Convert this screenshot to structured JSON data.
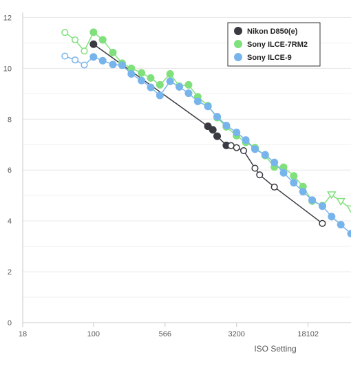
{
  "chart_data": {
    "type": "line",
    "title": "",
    "xlabel": "ISO Setting",
    "ylabel": "",
    "x_scale": "log2",
    "xlim": [
      18,
      51200
    ],
    "ylim": [
      0,
      12.2
    ],
    "x_ticks": [
      18,
      100,
      566,
      3200,
      18102
    ],
    "x_tick_labels": [
      "18",
      "100",
      "566",
      "3200",
      "18102"
    ],
    "y_ticks": [
      0,
      2,
      4,
      6,
      8,
      10,
      12
    ],
    "y_tick_labels": [
      "0",
      "2",
      "4",
      "6",
      "8",
      "10",
      "12"
    ],
    "grid": true,
    "legend_position": "top-right",
    "series": [
      {
        "name": "Nikon D850(e)",
        "color": "#3a3a42",
        "marker": "circle",
        "points": [
          {
            "x": 100,
            "y": 10.95,
            "filled": true
          },
          {
            "x": 1600,
            "y": 7.72,
            "filled": true
          },
          {
            "x": 1800,
            "y": 7.58,
            "filled": true
          },
          {
            "x": 2000,
            "y": 7.33,
            "filled": true
          },
          {
            "x": 2500,
            "y": 6.97,
            "filled": true
          },
          {
            "x": 2800,
            "y": 6.96,
            "filled": false
          },
          {
            "x": 3200,
            "y": 6.88,
            "filled": false
          },
          {
            "x": 3800,
            "y": 6.76,
            "filled": false
          },
          {
            "x": 5000,
            "y": 6.07,
            "filled": false
          },
          {
            "x": 5600,
            "y": 5.81,
            "filled": false
          },
          {
            "x": 8000,
            "y": 5.33,
            "filled": false
          },
          {
            "x": 25600,
            "y": 3.9,
            "filled": false
          }
        ]
      },
      {
        "name": "Sony ILCE-7RM2",
        "color": "#80e07c",
        "marker": "circle",
        "points": [
          {
            "x": 50,
            "y": 11.41,
            "filled": false
          },
          {
            "x": 64,
            "y": 11.12,
            "filled": false
          },
          {
            "x": 80,
            "y": 10.68,
            "filled": false
          },
          {
            "x": 100,
            "y": 11.42,
            "filled": true
          },
          {
            "x": 125,
            "y": 11.12,
            "filled": true
          },
          {
            "x": 160,
            "y": 10.62,
            "filled": true
          },
          {
            "x": 200,
            "y": 10.2,
            "filled": true
          },
          {
            "x": 250,
            "y": 10.0,
            "filled": true
          },
          {
            "x": 320,
            "y": 9.82,
            "filled": true
          },
          {
            "x": 400,
            "y": 9.62,
            "filled": true
          },
          {
            "x": 500,
            "y": 9.35,
            "filled": true
          },
          {
            "x": 640,
            "y": 9.78,
            "filled": true
          },
          {
            "x": 800,
            "y": 9.3,
            "filled": true
          },
          {
            "x": 1000,
            "y": 9.35,
            "filled": true
          },
          {
            "x": 1250,
            "y": 8.88,
            "filled": true
          },
          {
            "x": 1600,
            "y": 8.53,
            "filled": true
          },
          {
            "x": 2000,
            "y": 8.06,
            "filled": true
          },
          {
            "x": 2500,
            "y": 7.7,
            "filled": true
          },
          {
            "x": 3200,
            "y": 7.35,
            "filled": true
          },
          {
            "x": 4000,
            "y": 7.09,
            "filled": true
          },
          {
            "x": 5000,
            "y": 6.88,
            "filled": true
          },
          {
            "x": 6400,
            "y": 6.57,
            "filled": true
          },
          {
            "x": 8000,
            "y": 6.12,
            "filled": true
          },
          {
            "x": 10000,
            "y": 6.11,
            "filled": true
          },
          {
            "x": 12800,
            "y": 5.77,
            "filled": true
          },
          {
            "x": 16000,
            "y": 5.35,
            "filled": true
          },
          {
            "x": 20000,
            "y": 4.78,
            "filled": true
          },
          {
            "x": 25600,
            "y": 4.6,
            "filled": true
          },
          {
            "x": 32000,
            "y": 5.03,
            "filled": false,
            "marker": "triangle-down"
          },
          {
            "x": 40000,
            "y": 4.77,
            "filled": false,
            "marker": "triangle-down"
          },
          {
            "x": 51200,
            "y": 4.48,
            "filled": false,
            "marker": "triangle-down"
          }
        ]
      },
      {
        "name": "Sony ILCE-9",
        "color": "#78b4ec",
        "marker": "circle",
        "points": [
          {
            "x": 50,
            "y": 10.48,
            "filled": false
          },
          {
            "x": 64,
            "y": 10.33,
            "filled": false
          },
          {
            "x": 80,
            "y": 10.13,
            "filled": false
          },
          {
            "x": 100,
            "y": 10.45,
            "filled": true
          },
          {
            "x": 125,
            "y": 10.3,
            "filled": true
          },
          {
            "x": 160,
            "y": 10.15,
            "filled": true
          },
          {
            "x": 200,
            "y": 10.12,
            "filled": true
          },
          {
            "x": 250,
            "y": 9.78,
            "filled": true
          },
          {
            "x": 320,
            "y": 9.52,
            "filled": true
          },
          {
            "x": 400,
            "y": 9.25,
            "filled": true
          },
          {
            "x": 500,
            "y": 8.93,
            "filled": true
          },
          {
            "x": 640,
            "y": 9.49,
            "filled": true
          },
          {
            "x": 800,
            "y": 9.27,
            "filled": true
          },
          {
            "x": 1000,
            "y": 9.02,
            "filled": true
          },
          {
            "x": 1250,
            "y": 8.7,
            "filled": true
          },
          {
            "x": 1600,
            "y": 8.5,
            "filled": true
          },
          {
            "x": 2000,
            "y": 8.1,
            "filled": true
          },
          {
            "x": 2500,
            "y": 7.75,
            "filled": true
          },
          {
            "x": 3200,
            "y": 7.48,
            "filled": true
          },
          {
            "x": 4000,
            "y": 7.18,
            "filled": true
          },
          {
            "x": 5000,
            "y": 6.82,
            "filled": true
          },
          {
            "x": 6400,
            "y": 6.6,
            "filled": true
          },
          {
            "x": 8000,
            "y": 6.3,
            "filled": true
          },
          {
            "x": 10000,
            "y": 5.89,
            "filled": true
          },
          {
            "x": 12800,
            "y": 5.5,
            "filled": true
          },
          {
            "x": 16000,
            "y": 5.15,
            "filled": true
          },
          {
            "x": 20000,
            "y": 4.82,
            "filled": true
          },
          {
            "x": 25600,
            "y": 4.58,
            "filled": true
          },
          {
            "x": 32000,
            "y": 4.17,
            "filled": true
          },
          {
            "x": 40000,
            "y": 3.85,
            "filled": true
          },
          {
            "x": 51200,
            "y": 3.5,
            "filled": true
          }
        ]
      }
    ]
  }
}
